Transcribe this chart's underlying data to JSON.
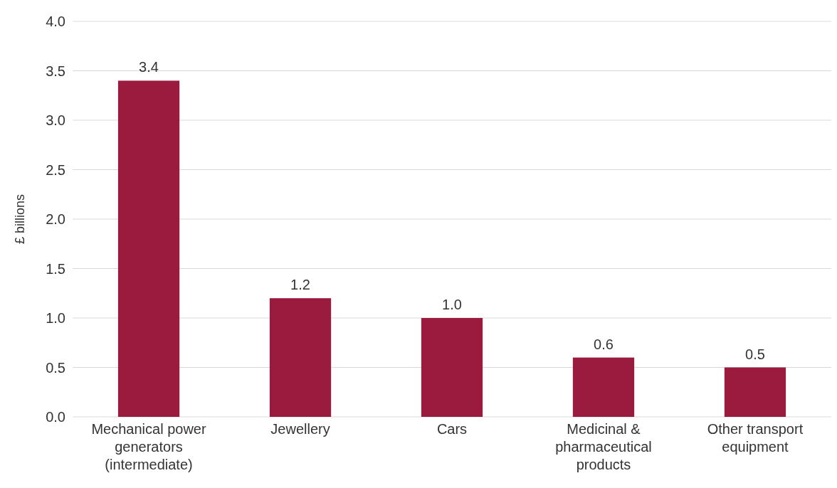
{
  "chart_data": {
    "type": "bar",
    "ylabel": "£ billions",
    "categories": [
      "Mechanical power generators (intermediate)",
      "Jewellery",
      "Cars",
      "Medicinal & pharmaceutical products",
      "Other transport equipment"
    ],
    "values": [
      3.4,
      1.2,
      1.0,
      0.6,
      0.5
    ],
    "color": "#9b1b3e",
    "ylim": [
      0,
      4
    ],
    "yticks": [
      {
        "value": 0,
        "label": "0.0"
      },
      {
        "value": 0.5,
        "label": "0.5"
      },
      {
        "value": 1,
        "label": "1.0"
      },
      {
        "value": 1.5,
        "label": "1.5"
      },
      {
        "value": 2,
        "label": "2.0"
      },
      {
        "value": 2.5,
        "label": "2.5"
      },
      {
        "value": 3,
        "label": "3.0"
      },
      {
        "value": 3.5,
        "label": "3.5"
      },
      {
        "value": 4,
        "label": "4.0"
      }
    ],
    "value_labels": [
      "3.4",
      "1.2",
      "1.0",
      "0.6",
      "0.5"
    ],
    "grid": "y"
  }
}
